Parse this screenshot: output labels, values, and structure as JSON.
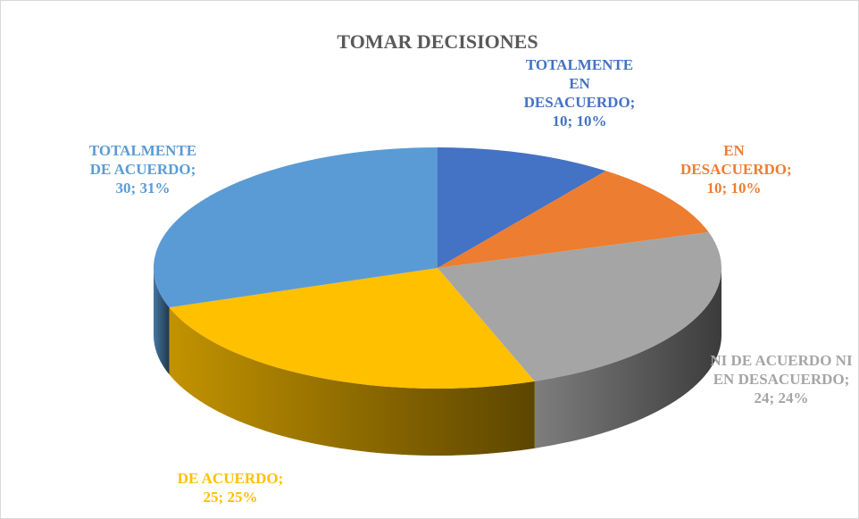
{
  "chart_data": {
    "type": "pie",
    "title": "TOMAR DECISIONES",
    "categories": [
      "TOTALMENTE EN DESACUERDO;",
      "EN DESACUERDO;",
      "NI DE ACUERDO NI EN DESACUERDO;",
      "DE ACUERDO;",
      "TOTALMENTE DE ACUERDO;"
    ],
    "values": [
      10,
      10,
      24,
      25,
      30
    ],
    "value_labels": [
      "10; 10%",
      "10; 10%",
      "24; 24%",
      "25; 25%",
      "30; 31%"
    ],
    "colors": [
      "#4472c4",
      "#ed7d31",
      "#a5a5a5",
      "#ffc000",
      "#5b9bd5"
    ],
    "label_colors": [
      "#4472c4",
      "#ed7d31",
      "#a5a5a5",
      "#ffc000",
      "#5b9bd5"
    ]
  }
}
